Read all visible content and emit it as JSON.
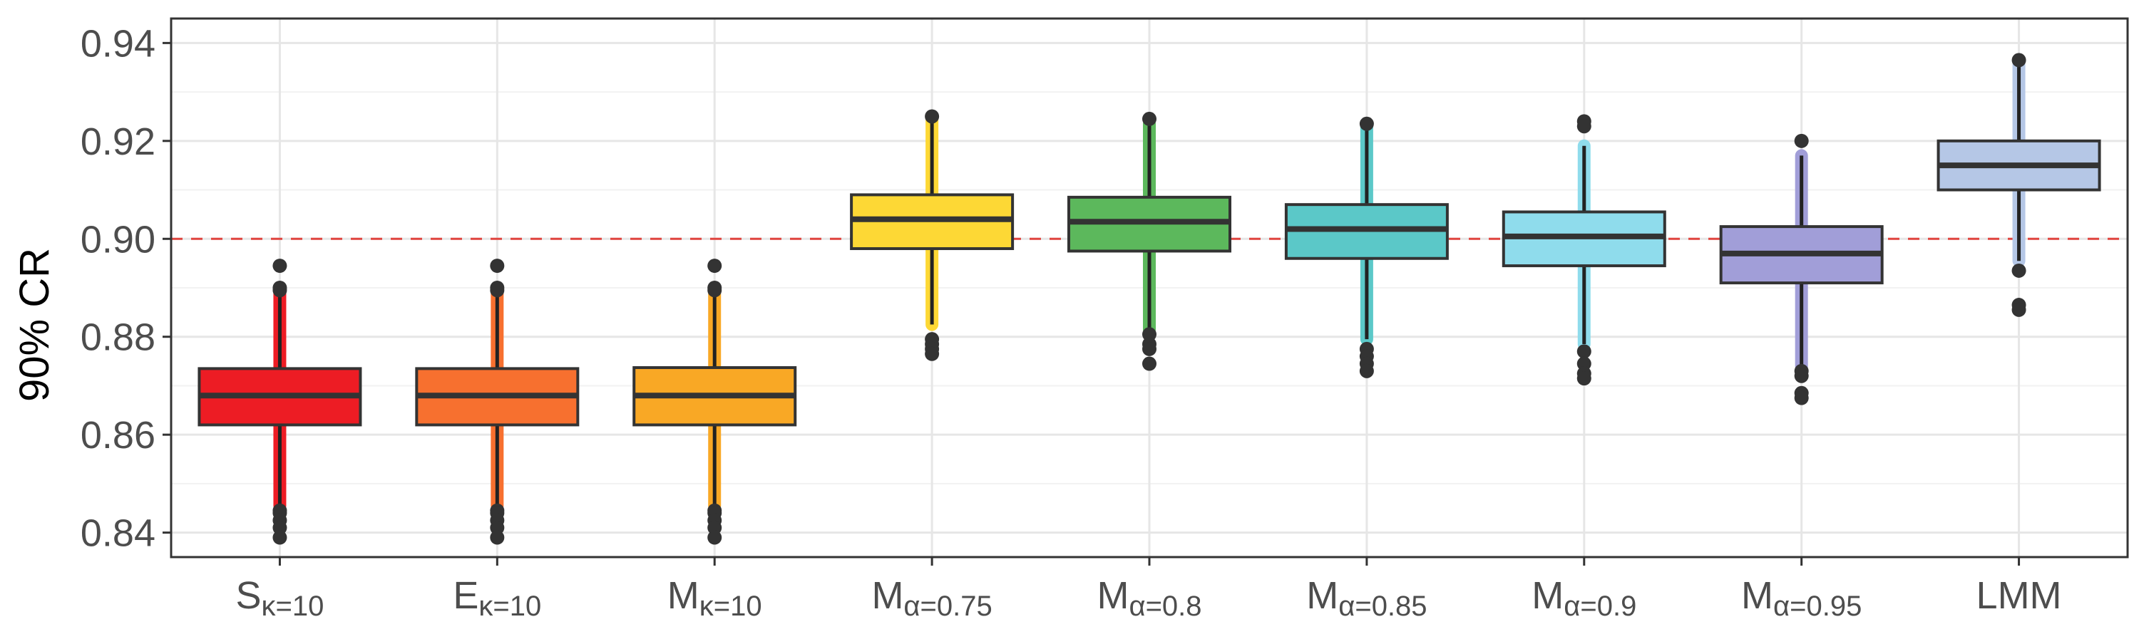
{
  "chart_data": {
    "type": "boxplot",
    "title": "",
    "xlabel": "",
    "ylabel": "90% CR",
    "ylim": [
      0.835,
      0.945
    ],
    "yticks": [
      0.84,
      0.86,
      0.88,
      0.9,
      0.92,
      0.94
    ],
    "ytick_labels": [
      "0.84",
      "0.86",
      "0.88",
      "0.90",
      "0.92",
      "0.94"
    ],
    "grid": true,
    "legend": "none",
    "reference_line": {
      "y": 0.9,
      "style": "dashed",
      "color": "#e0453f"
    },
    "categories": [
      {
        "base": "S",
        "sub": "κ=10"
      },
      {
        "base": "E",
        "sub": "κ=10"
      },
      {
        "base": "M",
        "sub": "κ=10"
      },
      {
        "base": "M",
        "sub": "α=0.75"
      },
      {
        "base": "M",
        "sub": "α=0.8"
      },
      {
        "base": "M",
        "sub": "α=0.85"
      },
      {
        "base": "M",
        "sub": "α=0.9"
      },
      {
        "base": "M",
        "sub": "α=0.95"
      },
      {
        "base": "LMM",
        "sub": ""
      }
    ],
    "boxes": [
      {
        "color": "#ed1c24",
        "q1": 0.862,
        "median": 0.868,
        "q3": 0.8735,
        "whisker_low": 0.8455,
        "whisker_high": 0.8895,
        "outliers": [
          0.8895,
          0.89,
          0.8945,
          0.8445,
          0.844,
          0.8425,
          0.841,
          0.839
        ]
      },
      {
        "color": "#f7702f",
        "q1": 0.862,
        "median": 0.868,
        "q3": 0.8735,
        "whisker_low": 0.8455,
        "whisker_high": 0.8895,
        "outliers": [
          0.8895,
          0.89,
          0.8945,
          0.8445,
          0.844,
          0.8425,
          0.841,
          0.839
        ]
      },
      {
        "color": "#f9a825",
        "q1": 0.862,
        "median": 0.868,
        "q3": 0.8737,
        "whisker_low": 0.8455,
        "whisker_high": 0.8895,
        "outliers": [
          0.8895,
          0.89,
          0.8945,
          0.8445,
          0.844,
          0.8425,
          0.841,
          0.839
        ]
      },
      {
        "color": "#fdd835",
        "q1": 0.898,
        "median": 0.904,
        "q3": 0.909,
        "whisker_low": 0.8825,
        "whisker_high": 0.9245,
        "outliers": [
          0.925,
          0.8795,
          0.8785,
          0.8775,
          0.8765
        ]
      },
      {
        "color": "#5cb85c",
        "q1": 0.8975,
        "median": 0.9035,
        "q3": 0.9085,
        "whisker_low": 0.8815,
        "whisker_high": 0.9235,
        "outliers": [
          0.9245,
          0.8805,
          0.8785,
          0.8775,
          0.8745
        ]
      },
      {
        "color": "#5bc8c8",
        "q1": 0.896,
        "median": 0.902,
        "q3": 0.907,
        "whisker_low": 0.8795,
        "whisker_high": 0.923,
        "outliers": [
          0.9235,
          0.8775,
          0.876,
          0.8745,
          0.873
        ]
      },
      {
        "color": "#8fdcec",
        "q1": 0.8945,
        "median": 0.9005,
        "q3": 0.9055,
        "whisker_low": 0.8785,
        "whisker_high": 0.919,
        "outliers": [
          0.924,
          0.923,
          0.877,
          0.8745,
          0.8725,
          0.8715
        ]
      },
      {
        "color": "#a19ed8",
        "q1": 0.891,
        "median": 0.897,
        "q3": 0.9025,
        "whisker_low": 0.874,
        "whisker_high": 0.917,
        "outliers": [
          0.92,
          0.873,
          0.872,
          0.8685,
          0.8675
        ]
      },
      {
        "color": "#b5c7e6",
        "q1": 0.91,
        "median": 0.915,
        "q3": 0.92,
        "whisker_low": 0.8955,
        "whisker_high": 0.9355,
        "outliers": [
          0.9365,
          0.8935,
          0.8865,
          0.8855
        ]
      }
    ]
  }
}
